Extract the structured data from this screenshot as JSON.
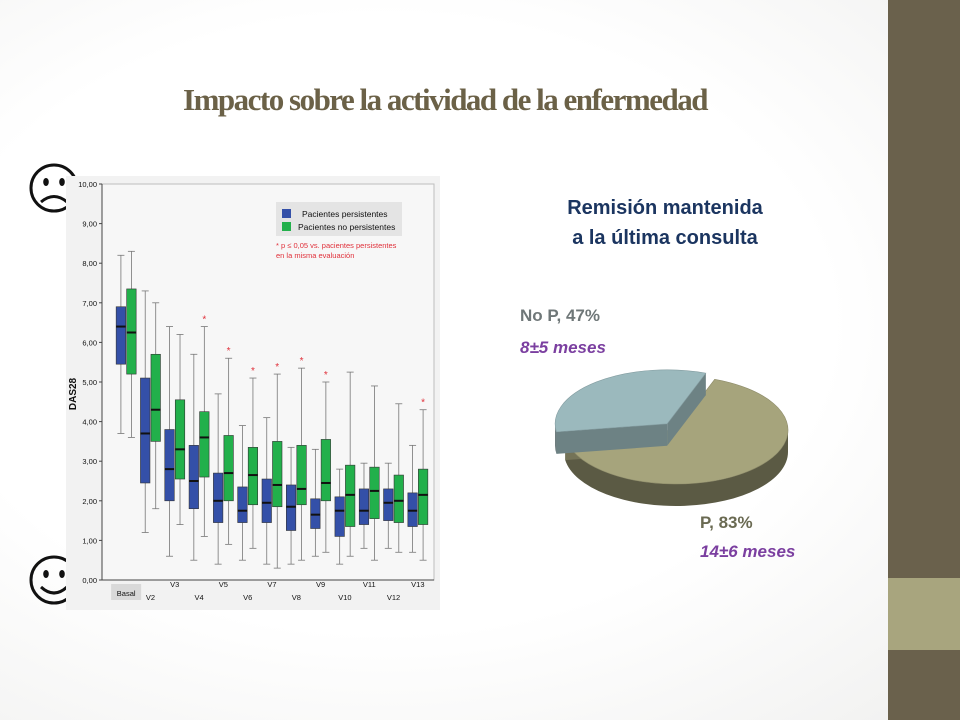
{
  "slide": {
    "title": "Impacto sobre la actividad de la enfermedad"
  },
  "icons": {
    "top": "sad-face-icon",
    "bottom": "happy-face-icon"
  },
  "colors": {
    "persistentes": "#3450a8",
    "no_persistentes": "#22b04b",
    "significance": "#e0303a",
    "pie_p": "#a6a47c",
    "pie_np": "#9bb9bd",
    "band_dark": "#6a614c",
    "band_light": "#a8a57e"
  },
  "chart_data": [
    {
      "type": "box",
      "ylabel": "DAS28",
      "ylim": [
        0,
        10
      ],
      "yticks": [
        "0,00",
        "1,00",
        "2,00",
        "3,00",
        "4,00",
        "5,00",
        "6,00",
        "7,00",
        "8,00",
        "9,00",
        "10,00"
      ],
      "categories": [
        "Basal",
        "V2",
        "V3",
        "V4",
        "V5",
        "V6",
        "V7",
        "V8",
        "V9",
        "V10",
        "V11",
        "V12",
        "V13"
      ],
      "legend": {
        "entries": [
          "Pacientes persistentes",
          "Pacientes no persistentes"
        ],
        "note_line1": "* p ≤ 0,05 vs. pacientes persistentes",
        "note_line2": "en la misma evaluación",
        "position": "top-right"
      },
      "significance_marker": "*",
      "significant_visits": [
        "V4",
        "V5",
        "V6",
        "V7",
        "V8",
        "V9",
        "V13"
      ],
      "series": [
        {
          "name": "Pacientes persistentes",
          "boxes": [
            {
              "min": 3.7,
              "q1": 5.45,
              "median": 6.4,
              "q3": 6.9,
              "max": 8.2
            },
            {
              "min": 1.2,
              "q1": 2.45,
              "median": 3.7,
              "q3": 5.1,
              "max": 7.3
            },
            {
              "min": 0.6,
              "q1": 2.0,
              "median": 2.8,
              "q3": 3.8,
              "max": 6.4
            },
            {
              "min": 0.5,
              "q1": 1.8,
              "median": 2.5,
              "q3": 3.4,
              "max": 5.7
            },
            {
              "min": 0.4,
              "q1": 1.45,
              "median": 2.0,
              "q3": 2.7,
              "max": 4.7
            },
            {
              "min": 0.5,
              "q1": 1.45,
              "median": 1.75,
              "q3": 2.35,
              "max": 3.9
            },
            {
              "min": 0.4,
              "q1": 1.45,
              "median": 1.95,
              "q3": 2.55,
              "max": 4.1
            },
            {
              "min": 0.4,
              "q1": 1.25,
              "median": 1.85,
              "q3": 2.4,
              "max": 3.35
            },
            {
              "min": 0.6,
              "q1": 1.3,
              "median": 1.65,
              "q3": 2.05,
              "max": 3.3
            },
            {
              "min": 0.4,
              "q1": 1.1,
              "median": 1.75,
              "q3": 2.1,
              "max": 2.8
            },
            {
              "min": 0.8,
              "q1": 1.4,
              "median": 1.75,
              "q3": 2.3,
              "max": 2.95
            },
            {
              "min": 0.8,
              "q1": 1.5,
              "median": 1.95,
              "q3": 2.3,
              "max": 2.95
            },
            {
              "min": 0.7,
              "q1": 1.35,
              "median": 1.75,
              "q3": 2.2,
              "max": 3.4
            }
          ]
        },
        {
          "name": "Pacientes no persistentes",
          "boxes": [
            {
              "min": 3.6,
              "q1": 5.2,
              "median": 6.25,
              "q3": 7.35,
              "max": 8.3
            },
            {
              "min": 1.8,
              "q1": 3.5,
              "median": 4.3,
              "q3": 5.7,
              "max": 7.0
            },
            {
              "min": 1.4,
              "q1": 2.55,
              "median": 3.3,
              "q3": 4.55,
              "max": 6.2
            },
            {
              "min": 1.1,
              "q1": 2.6,
              "median": 3.6,
              "q3": 4.25,
              "max": 6.4
            },
            {
              "min": 0.9,
              "q1": 2.0,
              "median": 2.7,
              "q3": 3.65,
              "max": 5.6
            },
            {
              "min": 0.8,
              "q1": 1.9,
              "median": 2.65,
              "q3": 3.35,
              "max": 5.1
            },
            {
              "min": 0.3,
              "q1": 1.85,
              "median": 2.4,
              "q3": 3.5,
              "max": 5.2
            },
            {
              "min": 0.5,
              "q1": 1.9,
              "median": 2.3,
              "q3": 3.4,
              "max": 5.35
            },
            {
              "min": 0.7,
              "q1": 2.0,
              "median": 2.45,
              "q3": 3.55,
              "max": 5.0
            },
            {
              "min": 0.6,
              "q1": 1.35,
              "median": 2.15,
              "q3": 2.9,
              "max": 5.25
            },
            {
              "min": 0.5,
              "q1": 1.55,
              "median": 2.25,
              "q3": 2.85,
              "max": 4.9
            },
            {
              "min": 0.7,
              "q1": 1.45,
              "median": 2.0,
              "q3": 2.65,
              "max": 4.45
            },
            {
              "min": 0.5,
              "q1": 1.4,
              "median": 2.15,
              "q3": 2.8,
              "max": 4.3
            }
          ]
        }
      ]
    },
    {
      "type": "pie",
      "title_line1": "Remisión mantenida",
      "title_line2": "a la última consulta",
      "slices": [
        {
          "label": "No P, 47%",
          "duration": "8±5 meses",
          "value": 33
        },
        {
          "label": "P, 83%",
          "duration": "14±6 meses",
          "value": 67
        }
      ]
    }
  ]
}
